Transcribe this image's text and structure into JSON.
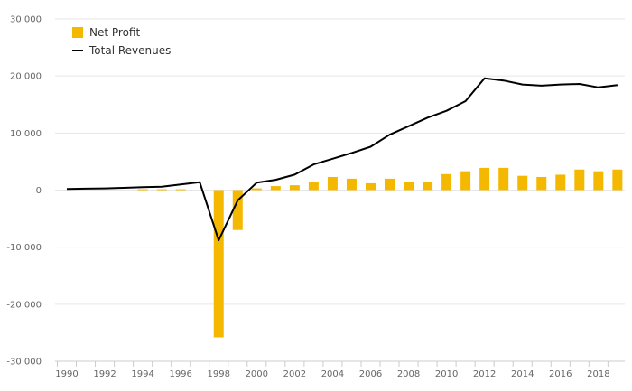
{
  "chart_data": {
    "type": "bar+line",
    "title": "",
    "xlabel": "",
    "ylabel": "",
    "ylim": [
      -30000,
      30000
    ],
    "yticks": [
      30000,
      20000,
      10000,
      0,
      -10000,
      -20000,
      -30000
    ],
    "ytick_labels": [
      "30 000",
      "20 000",
      "10 000",
      "0",
      "-10 000",
      "-20 000",
      "-30 000"
    ],
    "x": [
      1990,
      1991,
      1992,
      1993,
      1994,
      1995,
      1996,
      1997,
      1998,
      1999,
      2000,
      2001,
      2002,
      2003,
      2004,
      2005,
      2006,
      2007,
      2008,
      2009,
      2010,
      2011,
      2012,
      2013,
      2014,
      2015,
      2016,
      2017,
      2018,
      2019
    ],
    "xtick_labels": [
      "1990",
      "1992",
      "1994",
      "1996",
      "1998",
      "2000",
      "2002",
      "2004",
      "2006",
      "2008",
      "2010",
      "2012",
      "2014",
      "2016",
      "2018"
    ],
    "series": [
      {
        "name": "Net Profit",
        "kind": "bar",
        "color": "#f5b800",
        "values": [
          0,
          0,
          0,
          0,
          150,
          150,
          150,
          0,
          -25800,
          -7000,
          300,
          700,
          850,
          1500,
          2300,
          2000,
          1200,
          2000,
          1500,
          1500,
          2800,
          3300,
          3900,
          3900,
          2500,
          2300,
          2700,
          3600,
          3300,
          3600
        ]
      },
      {
        "name": "Total Revenues",
        "kind": "line",
        "color": "#000000",
        "values": [
          200,
          250,
          300,
          400,
          500,
          600,
          1000,
          1400,
          -8800,
          -1800,
          1300,
          1800,
          2700,
          4500,
          5500,
          6500,
          7600,
          9700,
          11200,
          12700,
          13900,
          15600,
          19600,
          19200,
          18500,
          18300,
          18500,
          18600,
          18000,
          18400
        ]
      }
    ],
    "legend": {
      "position": "top-left"
    }
  }
}
